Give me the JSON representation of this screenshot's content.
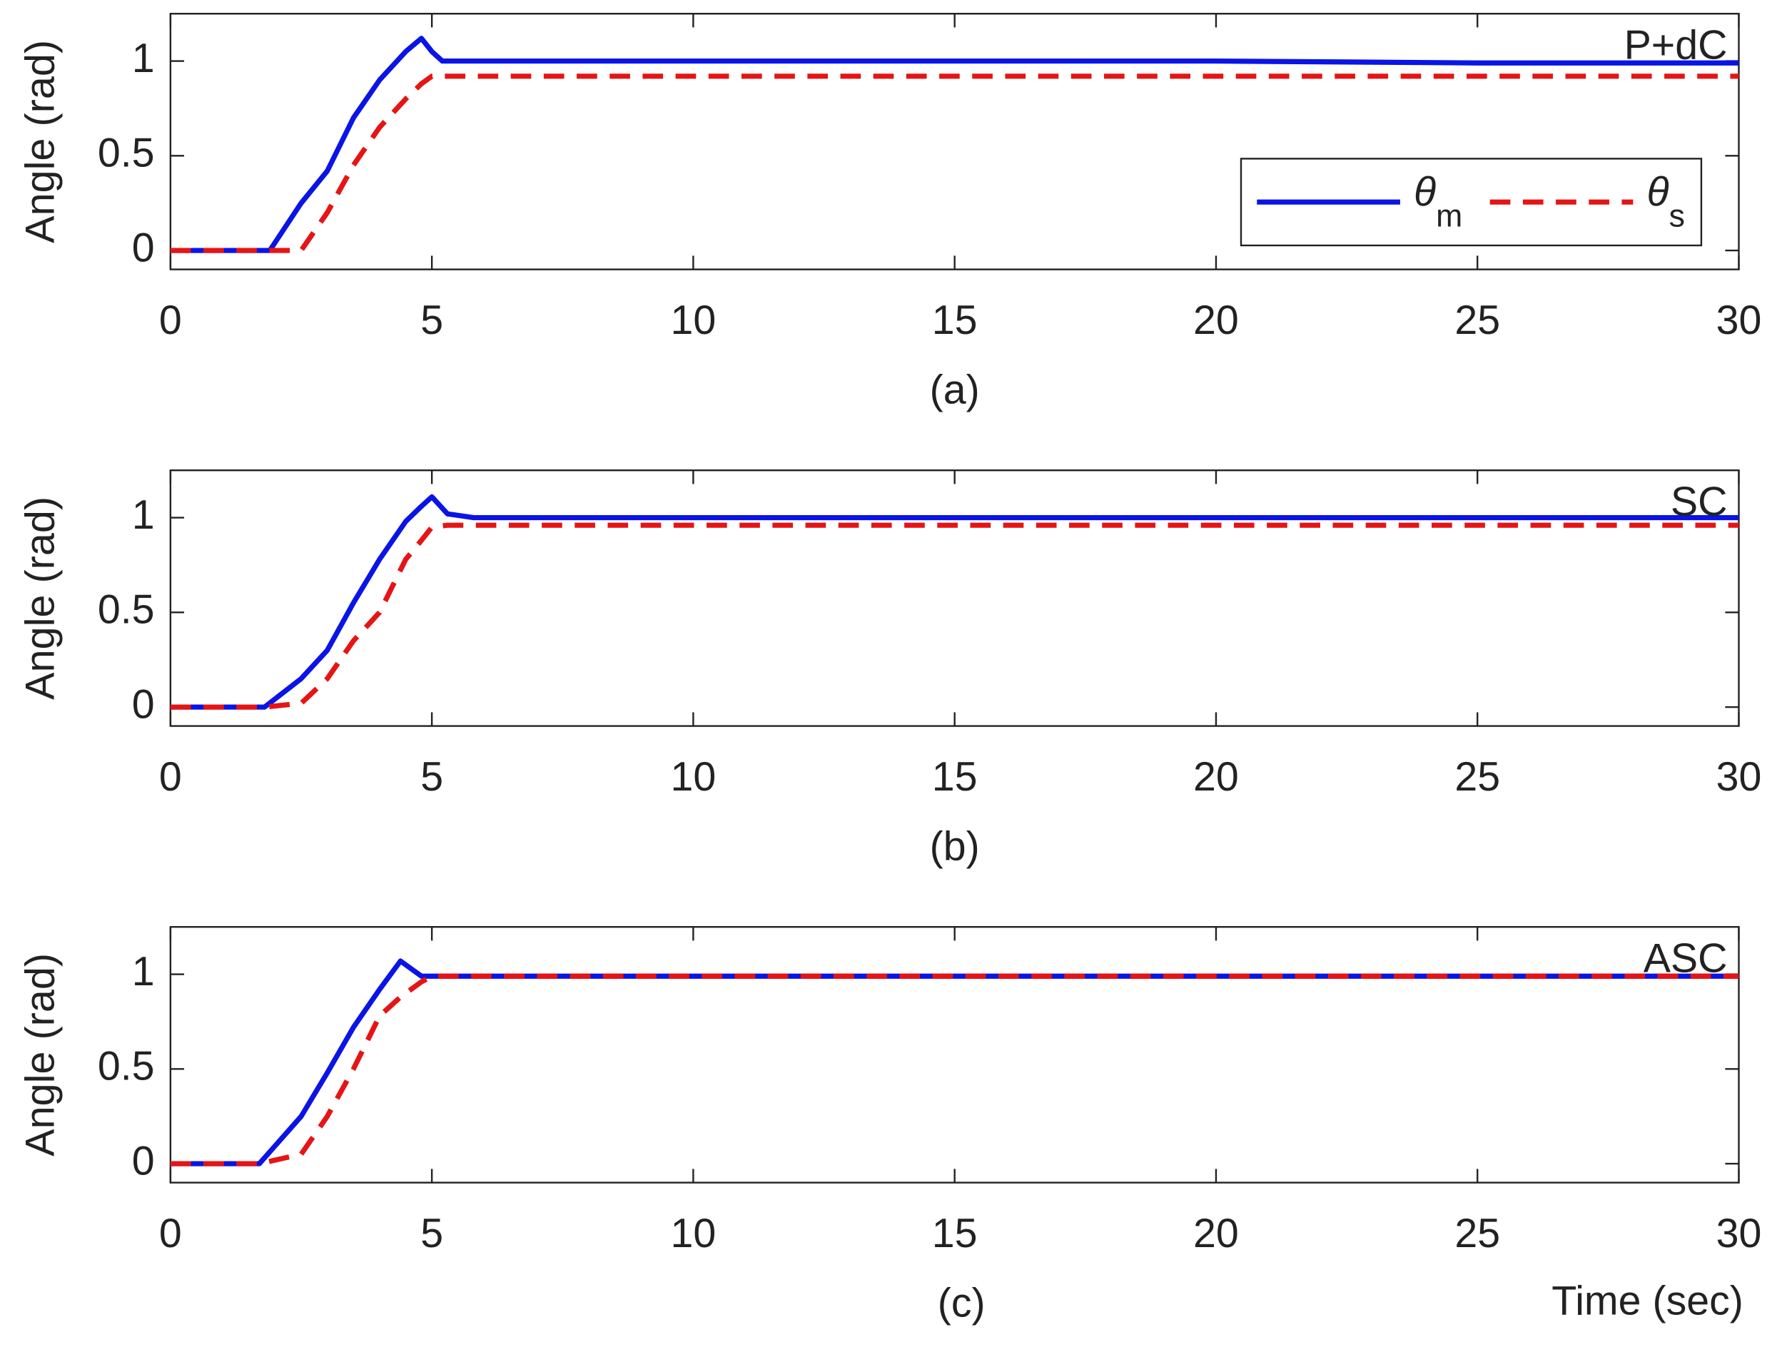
{
  "chart_data": [
    {
      "type": "line",
      "ylabel": "Angle (rad)",
      "caption": "(a)",
      "annotation": "P+dC",
      "x": [
        0,
        1,
        1.9,
        2.5,
        3,
        3.5,
        4,
        4.5,
        4.8,
        5,
        5.2,
        6,
        10,
        15,
        20,
        25,
        30
      ],
      "series": [
        {
          "name": "θm",
          "color": "#0a14e6",
          "dash": false,
          "values": [
            0,
            0,
            0,
            0.25,
            0.42,
            0.7,
            0.9,
            1.05,
            1.12,
            1.05,
            1.0,
            1.0,
            1.0,
            1.0,
            1.0,
            0.99,
            0.99
          ]
        },
        {
          "name": "θs",
          "color": "#e61414",
          "dash": true,
          "values": [
            0,
            0,
            0,
            0,
            0.2,
            0.45,
            0.65,
            0.8,
            0.88,
            0.92,
            0.92,
            0.92,
            0.92,
            0.92,
            0.92,
            0.92,
            0.92
          ]
        }
      ],
      "legend": "lower right",
      "xlim": [
        0,
        30
      ],
      "xticks": [
        0,
        5,
        10,
        15,
        20,
        25,
        30
      ],
      "ylim": [
        -0.1,
        1.25
      ],
      "yticks": [
        0,
        0.5,
        1
      ]
    },
    {
      "type": "line",
      "ylabel": "Angle (rad)",
      "caption": "(b)",
      "annotation": "SC",
      "x": [
        0,
        1,
        1.8,
        2.5,
        3,
        3.5,
        4,
        4.5,
        4.8,
        5,
        5.3,
        5.8,
        10,
        15,
        20,
        25,
        30
      ],
      "series": [
        {
          "name": "θm",
          "color": "#0a14e6",
          "dash": false,
          "values": [
            0,
            0,
            0,
            0.15,
            0.3,
            0.55,
            0.78,
            0.98,
            1.06,
            1.11,
            1.02,
            1.0,
            1.0,
            1.0,
            1.0,
            1.0,
            1.0
          ]
        },
        {
          "name": "θs",
          "color": "#e61414",
          "dash": true,
          "values": [
            0,
            0,
            0,
            0.02,
            0.15,
            0.35,
            0.5,
            0.78,
            0.88,
            0.95,
            0.96,
            0.96,
            0.96,
            0.96,
            0.96,
            0.96,
            0.96
          ]
        }
      ],
      "xlim": [
        0,
        30
      ],
      "xticks": [
        0,
        5,
        10,
        15,
        20,
        25,
        30
      ],
      "ylim": [
        -0.1,
        1.25
      ],
      "yticks": [
        0,
        0.5,
        1
      ]
    },
    {
      "type": "line",
      "ylabel": "Angle (rad)",
      "caption": "(c)",
      "annotation": "ASC",
      "xlabel": "Time (sec)",
      "x": [
        0,
        1,
        1.7,
        2.5,
        3,
        3.5,
        4,
        4.4,
        4.8,
        5,
        5.2,
        6,
        10,
        15,
        20,
        25,
        30
      ],
      "series": [
        {
          "name": "θm",
          "color": "#0a14e6",
          "dash": false,
          "values": [
            0,
            0,
            0,
            0.25,
            0.48,
            0.72,
            0.92,
            1.07,
            0.99,
            0.99,
            0.99,
            0.99,
            0.99,
            0.99,
            0.99,
            0.99,
            0.99
          ]
        },
        {
          "name": "θs",
          "color": "#e61414",
          "dash": true,
          "values": [
            0,
            0,
            0,
            0.05,
            0.25,
            0.5,
            0.78,
            0.88,
            0.96,
            0.99,
            0.99,
            0.99,
            0.99,
            0.99,
            0.99,
            0.99,
            0.99
          ]
        }
      ],
      "xlim": [
        0,
        30
      ],
      "xticks": [
        0,
        5,
        10,
        15,
        20,
        25,
        30
      ],
      "ylim": [
        -0.1,
        1.25
      ],
      "yticks": [
        0,
        0.5,
        1
      ]
    }
  ]
}
